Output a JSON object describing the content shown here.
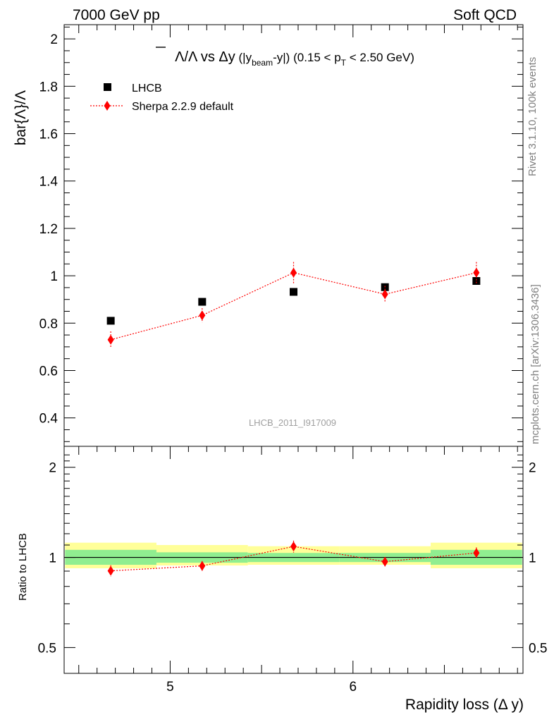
{
  "header": {
    "left": "7000 GeV pp",
    "right": "Soft QCD"
  },
  "side_labels": {
    "rivet": "Rivet 3.1.10,  100k events",
    "mcplots": "mcplots.cern.ch [arXiv:1306.3436]"
  },
  "chart_data": [
    {
      "type": "scatter",
      "title_parts": {
        "ratio": "Λ/Λ",
        "vs": " vs ",
        "var": "Δy",
        "paren_open": " (|y",
        "sub_beam": "beam",
        "paren_close": "-y|)",
        "range_a": " (0.15 < p",
        "sub_t": "T",
        "range_b": " < 2.50 GeV)"
      },
      "ylabel": "bar{Λ}/Λ",
      "ylim": [
        0.28,
        2.06
      ],
      "y_ticks": [
        0.4,
        0.6,
        0.8,
        1,
        1.2,
        1.4,
        1.6,
        1.8,
        2
      ],
      "y_tick_labels": [
        "0.4",
        "0.6",
        "0.8",
        "1",
        "1.2",
        "1.4",
        "1.6",
        "1.8",
        "2"
      ],
      "watermark": "LHCB_2011_I917009",
      "series": [
        {
          "name": "LHCB",
          "color": "#000000",
          "marker": "square",
          "x": [
            4.675,
            5.175,
            5.675,
            6.175,
            6.675
          ],
          "y": [
            0.81,
            0.89,
            0.932,
            0.952,
            0.978
          ]
        },
        {
          "name": "Sherpa 2.2.9 default",
          "color": "#ff0000",
          "marker": "diamond",
          "line": "dotted",
          "x": [
            4.675,
            5.175,
            5.675,
            6.175,
            6.675
          ],
          "y": [
            0.73,
            0.833,
            1.013,
            0.922,
            1.013
          ],
          "yerr": [
            0.035,
            0.03,
            0.045,
            0.035,
            0.045
          ]
        }
      ]
    },
    {
      "type": "scatter",
      "ylabel": "Ratio to LHCB",
      "ylim": [
        0.41,
        2.35
      ],
      "log_y": true,
      "y_ticks": [
        0.5,
        1,
        2
      ],
      "y_tick_labels": [
        "0.5",
        "1",
        "2"
      ],
      "xlabel": "Rapidity loss (Δ y)",
      "xlim": [
        4.42,
        6.93
      ],
      "x_ticks": [
        5,
        6
      ],
      "x_tick_labels": [
        "5",
        "6"
      ],
      "bands": {
        "colors": {
          "inner": "#90ee90",
          "outer": "#ffff99"
        },
        "bins": [
          {
            "x0": 4.425,
            "x1": 4.925,
            "inner": [
              0.945,
              1.06
            ],
            "outer": [
              0.92,
              1.12
            ]
          },
          {
            "x0": 4.925,
            "x1": 5.425,
            "inner": [
              0.96,
              1.04
            ],
            "outer": [
              0.94,
              1.1
            ]
          },
          {
            "x0": 5.425,
            "x1": 5.925,
            "inner": [
              0.965,
              1.035
            ],
            "outer": [
              0.945,
              1.09
            ]
          },
          {
            "x0": 5.925,
            "x1": 6.425,
            "inner": [
              0.965,
              1.035
            ],
            "outer": [
              0.945,
              1.09
            ]
          },
          {
            "x0": 6.425,
            "x1": 6.925,
            "inner": [
              0.945,
              1.06
            ],
            "outer": [
              0.92,
              1.12
            ]
          }
        ]
      },
      "series": [
        {
          "name": "Sherpa 2.2.9 default",
          "color": "#ff0000",
          "marker": "diamond",
          "line": "dotted",
          "x": [
            4.675,
            5.175,
            5.675,
            6.175,
            6.675
          ],
          "y": [
            0.902,
            0.937,
            1.088,
            0.968,
            1.035
          ],
          "yerr": [
            0.04,
            0.035,
            0.05,
            0.035,
            0.045
          ]
        }
      ]
    }
  ]
}
